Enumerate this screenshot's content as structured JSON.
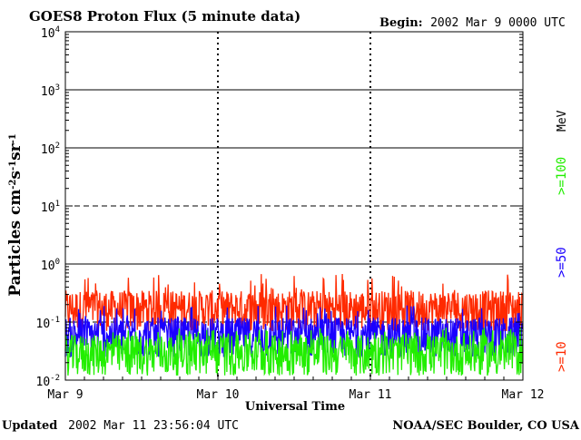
{
  "chart_data": {
    "type": "line",
    "title": "GOES8 Proton Flux (5 minute data)",
    "begin_label": "Begin:",
    "begin_value": "2002 Mar 9 0000 UTC",
    "ylabel": "Particles cm",
    "ylabel_sup1": "-2",
    "ylabel_s": "s",
    "ylabel_sup2": "-1",
    "ylabel_sr": "sr",
    "ylabel_sup3": "-1",
    "xlabel": "Universal Time",
    "y_scale": "log",
    "ylim": [
      0.01,
      10000
    ],
    "y_tick_labels": [
      {
        "base": "10",
        "exp": "4",
        "value": 10000
      },
      {
        "base": "10",
        "exp": "3",
        "value": 1000
      },
      {
        "base": "10",
        "exp": "2",
        "value": 100
      },
      {
        "base": "10",
        "exp": "1",
        "value": 10
      },
      {
        "base": "10",
        "exp": "0",
        "value": 1
      },
      {
        "base": "10",
        "exp": "-1",
        "value": 0.1
      },
      {
        "base": "10",
        "exp": "-2",
        "value": 0.01
      }
    ],
    "x_tick_labels": [
      "Mar 9",
      "Mar 10",
      "Mar 11",
      "Mar 12"
    ],
    "x_range_days": [
      0,
      3
    ],
    "legend_unit": "MeV",
    "series": [
      {
        "name": ">=10",
        "color": "#ff2a00",
        "baseline": 0.12,
        "spread_low": 0.07,
        "spread_high": 0.35,
        "spike_max": 0.7
      },
      {
        "name": ">=50",
        "color": "#1a00ff",
        "baseline": 0.045,
        "spread_low": 0.025,
        "spread_high": 0.12,
        "spike_max": 0.2
      },
      {
        "name": ">=100",
        "color": "#22ee00",
        "baseline": 0.025,
        "spread_low": 0.012,
        "spread_high": 0.06,
        "spike_max": 0.08
      }
    ],
    "threshold_lines": [
      10,
      0.1
    ],
    "grid": "solid lines at each decade, dashed at 10 and 0.1; dashed vertical day separators"
  },
  "footer": {
    "updated_label": "Updated",
    "updated_value": "2002 Mar 11 23:56:04 UTC",
    "credit": "NOAA/SEC Boulder, CO USA"
  }
}
